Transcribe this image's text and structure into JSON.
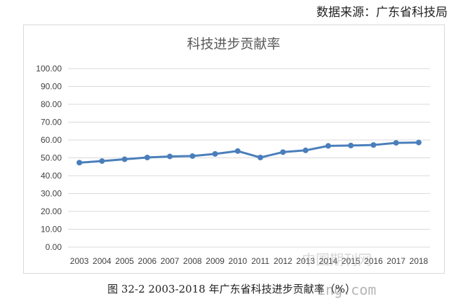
{
  "source_note": "数据来源：广东省科技局",
  "caption": "图 32-2 2003-2018 年广东省科技进步贡献率（%）",
  "watermark": {
    "line1": "中国期刊网",
    "line2": "ing.com"
  },
  "colors": {
    "series": "#4a7ebb",
    "grid": "#d9d9d9",
    "text": "#404040"
  },
  "chart_data": {
    "type": "line",
    "title": "科技进步贡献率",
    "xlabel": "",
    "ylabel": "",
    "categories": [
      "2003",
      "2004",
      "2005",
      "2006",
      "2007",
      "2008",
      "2009",
      "2010",
      "2011",
      "2012",
      "2013",
      "2014",
      "2015",
      "2016",
      "2017",
      "2018"
    ],
    "series": [
      {
        "values": [
          47.3,
          48.2,
          49.2,
          50.2,
          50.8,
          51.0,
          52.2,
          53.8,
          50.2,
          53.2,
          54.2,
          56.7,
          56.9,
          57.2,
          58.4,
          58.6
        ]
      }
    ],
    "ylim": [
      0,
      100
    ],
    "yticks": [
      "0.00",
      "10.00",
      "20.00",
      "30.00",
      "40.00",
      "50.00",
      "60.00",
      "70.00",
      "80.00",
      "90.00",
      "100.00"
    ],
    "grid": true,
    "legend": "none"
  }
}
